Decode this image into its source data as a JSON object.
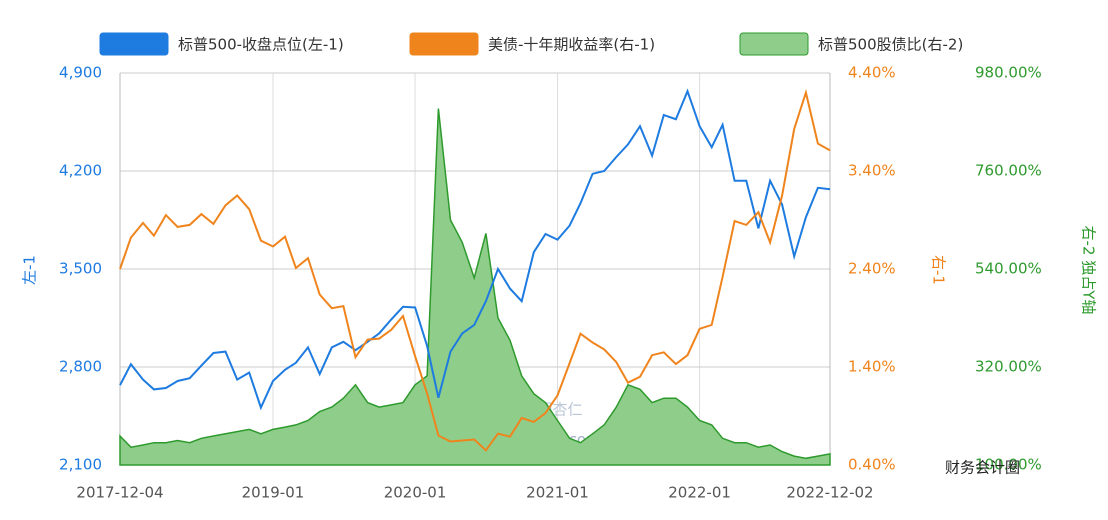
{
  "chart_data": {
    "type": "line",
    "x": [
      "2017-12-04",
      "2018-01",
      "2018-02",
      "2018-03",
      "2018-04",
      "2018-05",
      "2018-06",
      "2018-07",
      "2018-08",
      "2018-09",
      "2018-10",
      "2018-11",
      "2018-12",
      "2019-01",
      "2019-02",
      "2019-03",
      "2019-04",
      "2019-05",
      "2019-06",
      "2019-07",
      "2019-08",
      "2019-09",
      "2019-10",
      "2019-11",
      "2019-12",
      "2020-01",
      "2020-02",
      "2020-03",
      "2020-04",
      "2020-05",
      "2020-06",
      "2020-07",
      "2020-08",
      "2020-09",
      "2020-10",
      "2020-11",
      "2020-12",
      "2021-01",
      "2021-02",
      "2021-03",
      "2021-04",
      "2021-05",
      "2021-06",
      "2021-07",
      "2021-08",
      "2021-09",
      "2021-10",
      "2021-11",
      "2021-12",
      "2022-01",
      "2022-02",
      "2022-03",
      "2022-04",
      "2022-05",
      "2022-06",
      "2022-07",
      "2022-08",
      "2022-09",
      "2022-10",
      "2022-11",
      "2022-12-02"
    ],
    "series": [
      {
        "name": "标普500-收盘点位(左-1)",
        "color": "#1e7be0",
        "axis": "y",
        "values": [
          2670,
          2820,
          2710,
          2640,
          2650,
          2700,
          2720,
          2810,
          2900,
          2910,
          2710,
          2760,
          2510,
          2700,
          2780,
          2830,
          2940,
          2750,
          2940,
          2980,
          2920,
          2980,
          3040,
          3140,
          3230,
          3225,
          2950,
          2580,
          2910,
          3040,
          3100,
          3270,
          3500,
          3360,
          3270,
          3620,
          3750,
          3710,
          3810,
          3970,
          4180,
          4200,
          4300,
          4390,
          4520,
          4310,
          4600,
          4570,
          4770,
          4520,
          4370,
          4530,
          4130,
          4130,
          3790,
          4130,
          3960,
          3590,
          3870,
          4080,
          4070
        ]
      },
      {
        "name": "美债-十年期收益率(右-1)",
        "color": "#f0841c",
        "axis": "y2",
        "values": [
          2.4,
          2.72,
          2.87,
          2.74,
          2.95,
          2.83,
          2.85,
          2.96,
          2.86,
          3.05,
          3.15,
          3.01,
          2.69,
          2.63,
          2.73,
          2.41,
          2.51,
          2.14,
          2.0,
          2.02,
          1.5,
          1.68,
          1.69,
          1.78,
          1.92,
          1.51,
          1.13,
          0.7,
          0.64,
          0.65,
          0.66,
          0.55,
          0.72,
          0.69,
          0.88,
          0.84,
          0.93,
          1.11,
          1.44,
          1.74,
          1.65,
          1.58,
          1.45,
          1.24,
          1.3,
          1.52,
          1.55,
          1.43,
          1.52,
          1.79,
          1.83,
          2.32,
          2.89,
          2.85,
          2.98,
          2.67,
          3.15,
          3.83,
          4.2,
          3.68,
          3.61
        ]
      },
      {
        "name": "标普500股债比(右-2)",
        "color": "#2e9a2e",
        "fill": "#8fce8a",
        "axis": "y3",
        "type": "area",
        "values": [
          165,
          140,
          145,
          150,
          150,
          155,
          150,
          160,
          165,
          170,
          175,
          180,
          170,
          180,
          185,
          190,
          200,
          220,
          230,
          250,
          280,
          240,
          230,
          235,
          240,
          280,
          300,
          900,
          650,
          600,
          520,
          620,
          430,
          380,
          300,
          260,
          240,
          200,
          160,
          150,
          170,
          190,
          230,
          280,
          270,
          240,
          250,
          250,
          230,
          200,
          190,
          160,
          150,
          150,
          140,
          145,
          130,
          120,
          115,
          120,
          125
        ]
      }
    ],
    "xlim": [
      "2017-12-04",
      "2022-12-02"
    ],
    "xticks": [
      "2017-12-04",
      "2019-01",
      "2020-01",
      "2021-01",
      "2022-01",
      "2022-12-02"
    ],
    "ylim": [
      2100,
      4900
    ],
    "yticks": [
      {
        "value": 2100,
        "label": "2,100"
      },
      {
        "value": 2800,
        "label": "2,800"
      },
      {
        "value": 3500,
        "label": "3,500"
      },
      {
        "value": 4200,
        "label": "4,200"
      },
      {
        "value": 4900,
        "label": "4,900"
      }
    ],
    "y2lim": [
      0.4,
      4.4
    ],
    "y2ticks": [
      {
        "value": 0.4,
        "label": "0.40%"
      },
      {
        "value": 1.4,
        "label": "1.40%"
      },
      {
        "value": 2.4,
        "label": "2.40%"
      },
      {
        "value": 3.4,
        "label": "3.40%"
      },
      {
        "value": 4.4,
        "label": "4.40%"
      }
    ],
    "y3lim": [
      100,
      980
    ],
    "y3ticks": [
      {
        "value": 100,
        "label": "100.00%"
      },
      {
        "value": 320,
        "label": "320.00%"
      },
      {
        "value": 540,
        "label": "540.00%"
      },
      {
        "value": 760,
        "label": "760.00%"
      },
      {
        "value": 980,
        "label": "980.00%"
      }
    ],
    "ylabel": "左-1",
    "y2label": "右-1",
    "y3label": "右-2 独占Y轴",
    "grid": true,
    "watermark": "理杏仁",
    "watermark_url": "lixinger.com",
    "source": "财务会计圈"
  }
}
